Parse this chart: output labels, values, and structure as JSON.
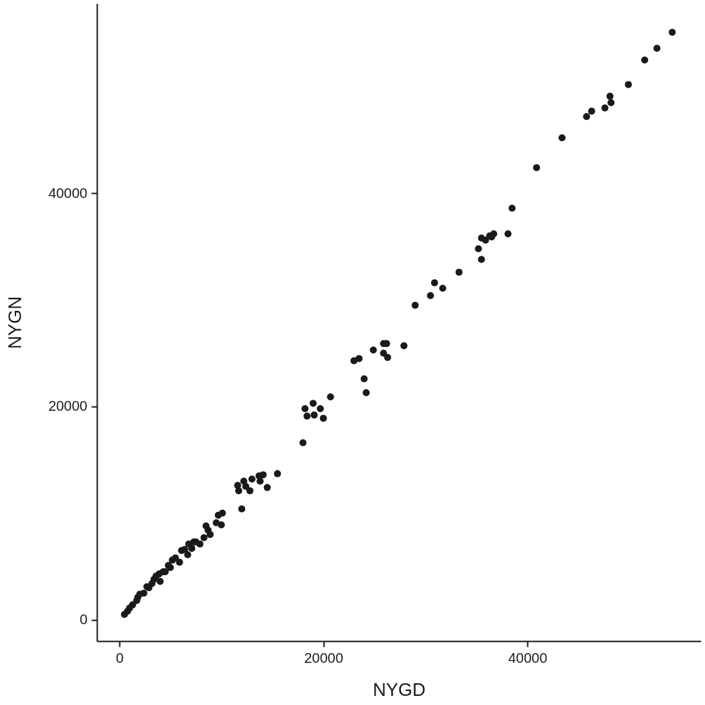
{
  "chart_data": {
    "type": "scatter",
    "xlabel": "NYGD",
    "ylabel": "NYGN",
    "xlim": [
      -2200,
      57000
    ],
    "ylim": [
      -2000,
      57800
    ],
    "xticks": [
      0,
      20000,
      40000
    ],
    "yticks": [
      0,
      20000,
      40000
    ],
    "grid": false,
    "marker": "circle",
    "series": [
      {
        "color": "#1a1a1a",
        "x": [
          54200,
          52700,
          51500,
          49900,
          48100,
          48200,
          47600,
          46300,
          45800,
          43400,
          40900,
          38500,
          38100,
          36700,
          36500,
          36300,
          35900,
          35500,
          35200,
          35500,
          33300,
          30900,
          31700,
          30500,
          29000,
          27900,
          25900,
          26200,
          25900,
          26300,
          24900,
          23500,
          23000,
          24000,
          24200,
          20700,
          19000,
          18200,
          19700,
          18400,
          19100,
          20000,
          18000,
          15500,
          14100,
          13700,
          13800,
          14500,
          13000,
          12200,
          11600,
          11700,
          12800,
          12400,
          12000,
          10100,
          9700,
          10000,
          9500,
          8500,
          8900,
          8300,
          7900,
          7300,
          7100,
          6400,
          6700,
          5900,
          5200,
          5000,
          4500,
          3900,
          4000,
          3400,
          3200,
          2700,
          2400,
          2000,
          1700,
          1300,
          1000,
          500,
          800,
          1800,
          2900,
          3600,
          4300,
          4800,
          5500,
          6100,
          6800,
          7500,
          8700
        ],
        "values": [
          55100,
          53600,
          52500,
          50200,
          49100,
          48500,
          48000,
          47700,
          47200,
          45200,
          42400,
          38600,
          36200,
          36200,
          35900,
          36000,
          35600,
          35800,
          34800,
          33800,
          32600,
          31600,
          31100,
          30400,
          29500,
          25700,
          25900,
          25900,
          25000,
          24600,
          25300,
          24500,
          24300,
          22600,
          21300,
          20900,
          20300,
          19800,
          19800,
          19100,
          19200,
          18900,
          16600,
          13700,
          13600,
          13500,
          13000,
          12400,
          13200,
          13000,
          12600,
          12100,
          12100,
          12500,
          10400,
          10000,
          9800,
          8900,
          9100,
          8800,
          8000,
          7700,
          7100,
          7300,
          6700,
          6600,
          6100,
          5400,
          5600,
          4900,
          4500,
          4300,
          3600,
          3800,
          3400,
          3100,
          2500,
          2400,
          1800,
          1400,
          1100,
          500,
          800,
          2100,
          3000,
          4100,
          4500,
          5100,
          5800,
          6500,
          7100,
          7300,
          8400
        ]
      }
    ]
  }
}
